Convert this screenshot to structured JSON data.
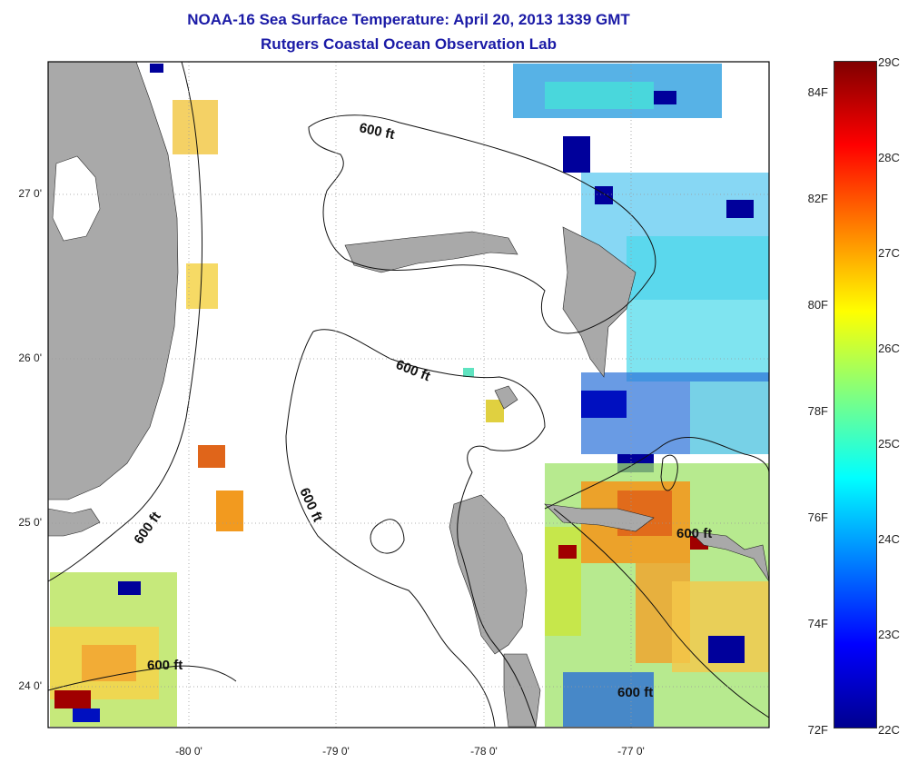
{
  "header": {
    "title": "NOAA-16 Sea Surface Temperature:  April 20, 2013 1339 GMT",
    "subtitle": "Rutgers Coastal Ocean Observation Lab"
  },
  "map": {
    "lat_ticks": [
      "27 0'",
      "26 0'",
      "25 0'",
      "24 0'"
    ],
    "lon_ticks": [
      "-80 0'",
      "-79 0'",
      "-78 0'",
      "-77 0'"
    ],
    "contour_labels": [
      "600 ft",
      "600 ft",
      "600 ft",
      "600 ft",
      "600 ft",
      "600 ft"
    ],
    "colors": {
      "land": "#a9a9a9",
      "frame": "#000000",
      "grid": "#9a9a9a"
    }
  },
  "colorbar": {
    "fahrenheit_ticks": [
      "84F",
      "82F",
      "80F",
      "78F",
      "76F",
      "74F",
      "72F"
    ],
    "celsius_ticks": [
      "29C",
      "28C",
      "27C",
      "26C",
      "25C",
      "24C",
      "23C",
      "22C"
    ],
    "colormap": [
      "#00008f",
      "#0000ff",
      "#0080ff",
      "#00ffff",
      "#80ff80",
      "#ffff00",
      "#ff8000",
      "#ff0000",
      "#800000"
    ]
  }
}
